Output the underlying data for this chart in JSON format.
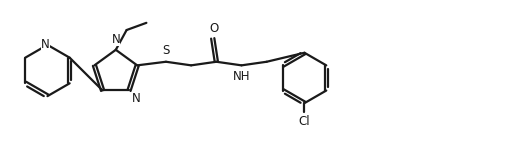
{
  "background_color": "#ffffff",
  "line_color": "#1a1a1a",
  "line_width": 1.6,
  "font_size": 8.5,
  "figsize": [
    5.14,
    1.41
  ],
  "dpi": 100,
  "xlim": [
    0.3,
    6.0
  ],
  "ylim": [
    0.0,
    1.4
  ]
}
